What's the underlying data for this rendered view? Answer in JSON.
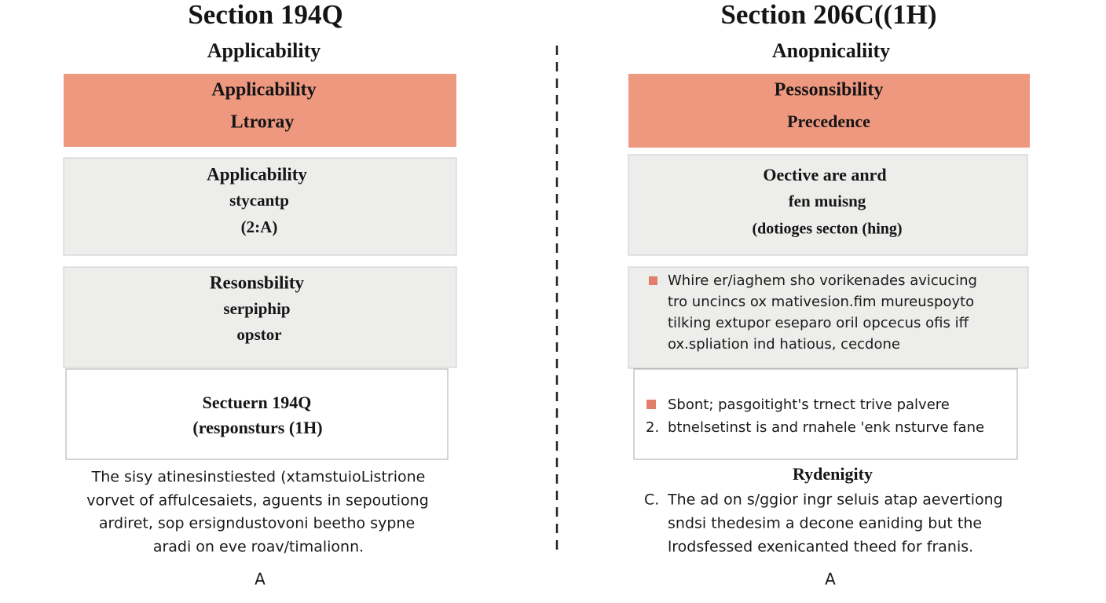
{
  "left": {
    "title": "Section 194Q",
    "subtitle": "Applicability",
    "boxes": [
      {
        "lines": [
          "Applicability",
          "Ltroray"
        ]
      },
      {
        "lines": [
          "Applicability",
          "stycantp",
          "(2:A)"
        ]
      },
      {
        "lines": [
          "Resonsbility",
          "serpiphip",
          "opstor"
        ]
      },
      {
        "lines": [
          "Sectuern 194Q",
          "(responsturs (1H)"
        ]
      }
    ],
    "paragraph": [
      "The sisy atinesinstiested (xtamstuioListrione",
      "vorvet of affulcesaiets, aguents in sepoutiong",
      "ardiret, sop ersigndustovoni beetho sypne",
      "aradi on eve roav/timalionn."
    ],
    "footer": "A"
  },
  "right": {
    "title": "Section 206C((1H)",
    "subtitle": "Anopnicaliity",
    "boxes": [
      {
        "lines": [
          "Pessonsibility",
          "Precedence"
        ]
      },
      {
        "lines": [
          "Oective are anrd",
          "fen muisng",
          "(dotioges secton (hing)"
        ]
      },
      {
        "lines": [
          "Whire er/iaghem sho vorikenades avicucing",
          "tro uncincs ox mativesion.fim mureuspoyto",
          "tilking extupor eseparo oril opcecus ofis iff",
          "ox.spliation ind hatious, cecdone"
        ]
      },
      {
        "items": [
          {
            "text": "Sbont; pasgoitight's trnect trive palvere"
          },
          {
            "marker": "2.",
            "text": "btnelsetinst is and rnahele 'enk nsturve fane"
          }
        ]
      }
    ],
    "heading": "Rydenigity",
    "paragraph": {
      "marker": "C.",
      "lines": [
        "The ad on s/ggior ingr seluis atap aevertiong",
        "sndsi thedesim a decone eaniding but the",
        "lrodsfessed exenicanted theed for franis."
      ]
    },
    "footer": "A"
  }
}
